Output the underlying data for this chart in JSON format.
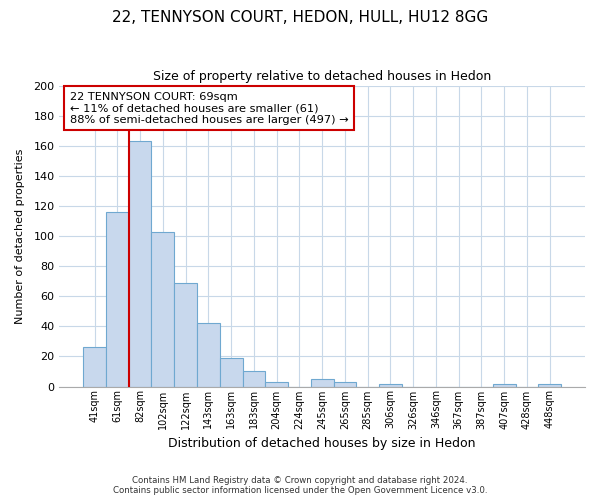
{
  "title": "22, TENNYSON COURT, HEDON, HULL, HU12 8GG",
  "subtitle": "Size of property relative to detached houses in Hedon",
  "xlabel": "Distribution of detached houses by size in Hedon",
  "ylabel": "Number of detached properties",
  "bin_labels": [
    "41sqm",
    "61sqm",
    "82sqm",
    "102sqm",
    "122sqm",
    "143sqm",
    "163sqm",
    "183sqm",
    "204sqm",
    "224sqm",
    "245sqm",
    "265sqm",
    "285sqm",
    "306sqm",
    "326sqm",
    "346sqm",
    "367sqm",
    "387sqm",
    "407sqm",
    "428sqm",
    "448sqm"
  ],
  "bar_heights": [
    26,
    116,
    163,
    103,
    69,
    42,
    19,
    10,
    3,
    0,
    5,
    3,
    0,
    2,
    0,
    0,
    0,
    0,
    2,
    0,
    2
  ],
  "bar_color": "#c8d8ed",
  "bar_edge_color": "#6fa8d0",
  "grid_color": "#c8d8e8",
  "vline_color": "#cc0000",
  "annotation_text": "22 TENNYSON COURT: 69sqm\n← 11% of detached houses are smaller (61)\n88% of semi-detached houses are larger (497) →",
  "annotation_box_color": "#ffffff",
  "annotation_box_edge": "#cc0000",
  "ylim": [
    0,
    200
  ],
  "yticks": [
    0,
    20,
    40,
    60,
    80,
    100,
    120,
    140,
    160,
    180,
    200
  ],
  "footer_line1": "Contains HM Land Registry data © Crown copyright and database right 2024.",
  "footer_line2": "Contains public sector information licensed under the Open Government Licence v3.0.",
  "bg_color": "#ffffff",
  "title_fontsize": 11,
  "subtitle_fontsize": 9
}
